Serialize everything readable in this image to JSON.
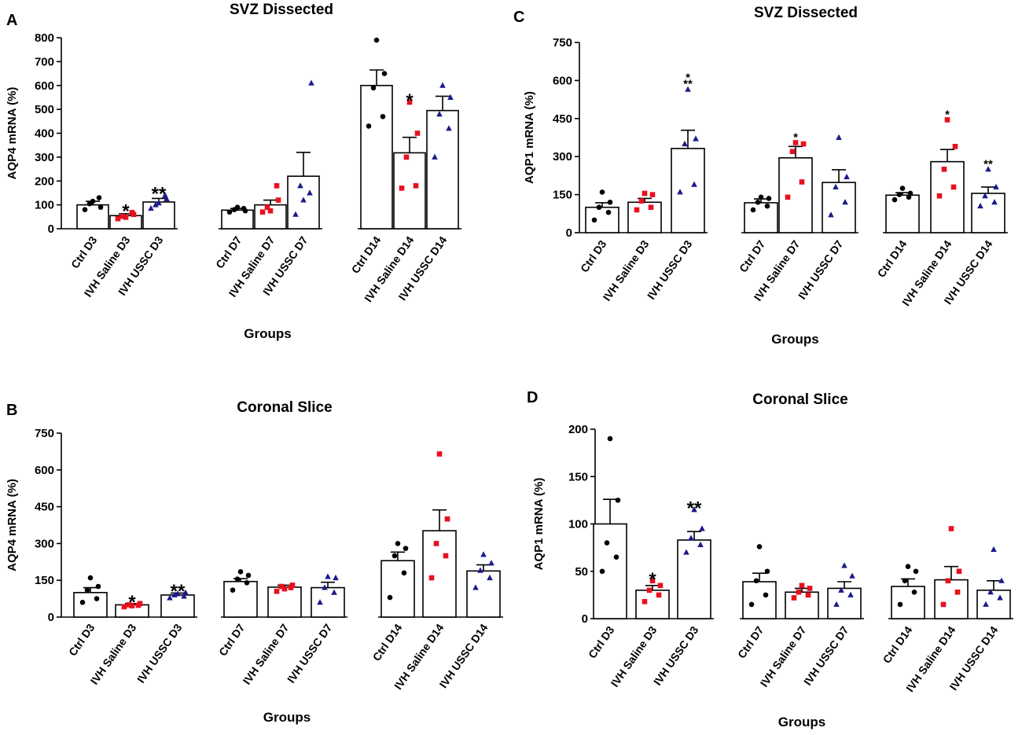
{
  "colors": {
    "ctrl": "#000000",
    "saline": "#e8101e",
    "ussc": "#1a1a8c"
  },
  "chart_data": [
    {
      "panel": "A",
      "type": "bar",
      "title": "SVZ  Dissected",
      "xlabel": "Groups",
      "ylabel": "AQP4 mRNA (%)",
      "ylim": [
        0,
        800
      ],
      "yticks": [
        0,
        100,
        200,
        300,
        400,
        500,
        600,
        700,
        800
      ],
      "categories": [
        "Ctrl D3",
        "IVH Saline D3",
        "IVH USSC D3",
        "Ctrl D7",
        "IVH Saline D7",
        "IVH USSC D7",
        "Ctrl D14",
        "IVH Saline D14",
        "IVH USSC D14"
      ],
      "groups": [
        "ctrl",
        "saline",
        "ussc",
        "ctrl",
        "saline",
        "ussc",
        "ctrl",
        "saline",
        "ussc"
      ],
      "values": [
        100,
        55,
        112,
        78,
        100,
        220,
        600,
        318,
        495
      ],
      "errors": [
        15,
        8,
        15,
        7,
        20,
        100,
        65,
        65,
        60
      ],
      "points": [
        [
          80,
          130,
          105,
          90,
          115
        ],
        [
          42,
          68,
          52,
          60,
          48
        ],
        [
          85,
          140,
          100,
          125,
          108
        ],
        [
          70,
          85,
          80,
          75,
          90
        ],
        [
          70,
          180,
          90,
          120,
          75
        ],
        [
          60,
          150,
          180,
          610,
          120
        ],
        [
          430,
          470,
          590,
          650,
          790
        ],
        [
          170,
          180,
          300,
          400,
          530
        ],
        [
          300,
          420,
          480,
          550,
          600
        ]
      ],
      "annotations": [
        "",
        "*",
        "**",
        "",
        "",
        "",
        "",
        "*",
        ""
      ]
    },
    {
      "panel": "B",
      "type": "bar",
      "title": "Coronal  Slice",
      "xlabel": "Groups",
      "ylabel": "AQP4 mRNA (%)",
      "ylim": [
        0,
        750
      ],
      "yticks": [
        0,
        150,
        300,
        450,
        600,
        750
      ],
      "categories": [
        "Ctrl D3",
        "IVH Saline D3",
        "IVH USSC D3",
        "Ctrl D7",
        "IVH Saline D7",
        "IVH USSC D7",
        "Ctrl D14",
        "IVH Saline D14",
        "IVH USSC D14"
      ],
      "groups": [
        "ctrl",
        "saline",
        "ussc",
        "ctrl",
        "saline",
        "ussc",
        "ctrl",
        "saline",
        "ussc"
      ],
      "values": [
        100,
        50,
        90,
        145,
        122,
        120,
        230,
        352,
        188
      ],
      "errors": [
        20,
        5,
        8,
        12,
        8,
        22,
        35,
        85,
        25
      ],
      "points": [
        [
          60,
          75,
          110,
          125,
          160
        ],
        [
          42,
          48,
          50,
          55,
          46
        ],
        [
          78,
          85,
          90,
          100,
          95
        ],
        [
          110,
          140,
          155,
          170,
          185
        ],
        [
          105,
          120,
          125,
          130,
          115
        ],
        [
          60,
          100,
          120,
          160,
          165
        ],
        [
          80,
          180,
          250,
          280,
          300
        ],
        [
          160,
          250,
          300,
          400,
          665
        ],
        [
          120,
          160,
          190,
          220,
          255
        ]
      ],
      "annotations": [
        "",
        "*",
        "**",
        "",
        "",
        "",
        "",
        "",
        ""
      ]
    },
    {
      "panel": "C",
      "type": "bar",
      "title": "SVZ  Dissected",
      "xlabel": "Groups",
      "ylabel": "AQP1 mRNA (%)",
      "ylim": [
        0,
        750
      ],
      "yticks": [
        0,
        150,
        300,
        450,
        600,
        750
      ],
      "categories": [
        "Ctrl D3",
        "IVH Saline D3",
        "IVH USSC D3",
        "Ctrl D7",
        "IVH Saline D7",
        "IVH USSC D7",
        "Ctrl D14",
        "IVH Saline D14",
        "IVH USSC D14"
      ],
      "groups": [
        "ctrl",
        "saline",
        "ussc",
        "ctrl",
        "saline",
        "ussc",
        "ctrl",
        "saline",
        "ussc"
      ],
      "values": [
        100,
        120,
        332,
        118,
        295,
        198,
        148,
        280,
        155
      ],
      "errors": [
        18,
        15,
        72,
        15,
        45,
        50,
        10,
        48,
        25
      ],
      "points": [
        [
          50,
          80,
          100,
          120,
          160
        ],
        [
          90,
          100,
          125,
          150,
          155
        ],
        [
          160,
          190,
          350,
          370,
          565
        ],
        [
          90,
          105,
          120,
          135,
          140
        ],
        [
          140,
          200,
          320,
          350,
          355
        ],
        [
          70,
          120,
          180,
          220,
          375
        ],
        [
          130,
          140,
          150,
          155,
          175
        ],
        [
          145,
          180,
          250,
          340,
          445
        ],
        [
          105,
          120,
          145,
          180,
          250
        ]
      ],
      "annotations": [
        "",
        "",
        "*\n**",
        "",
        "*",
        "",
        "",
        "*",
        "**"
      ]
    },
    {
      "panel": "D",
      "type": "bar",
      "title": "Coronal  Slice",
      "xlabel": "Groups",
      "ylabel": "AQP1 mRNA (%)",
      "ylim": [
        0,
        200
      ],
      "yticks": [
        0,
        50,
        100,
        150,
        200
      ],
      "categories": [
        "Ctrl D3",
        "IVH Saline D3",
        "IVH USSC D3",
        "Ctrl D7",
        "IVH Saline D7",
        "IVH USSC D7",
        "Ctrl D14",
        "IVH Saline D14",
        "IVH USSC D14"
      ],
      "groups": [
        "ctrl",
        "saline",
        "ussc",
        "ctrl",
        "saline",
        "ussc",
        "ctrl",
        "saline",
        "ussc"
      ],
      "values": [
        100,
        30,
        83,
        39,
        28,
        32,
        34,
        41,
        30
      ],
      "errors": [
        26,
        5,
        9,
        9,
        4,
        7,
        8,
        14,
        10
      ],
      "points": [
        [
          50,
          65,
          80,
          125,
          190
        ],
        [
          18,
          25,
          30,
          35,
          40
        ],
        [
          70,
          78,
          85,
          95,
          115
        ],
        [
          15,
          25,
          40,
          50,
          76
        ],
        [
          22,
          25,
          28,
          32,
          35
        ],
        [
          15,
          25,
          30,
          45,
          56
        ],
        [
          15,
          28,
          40,
          50,
          55
        ],
        [
          15,
          28,
          40,
          50,
          95
        ],
        [
          15,
          22,
          28,
          40,
          73
        ]
      ],
      "annotations": [
        "",
        "*",
        "**",
        "",
        "",
        "",
        "",
        "",
        ""
      ]
    }
  ]
}
